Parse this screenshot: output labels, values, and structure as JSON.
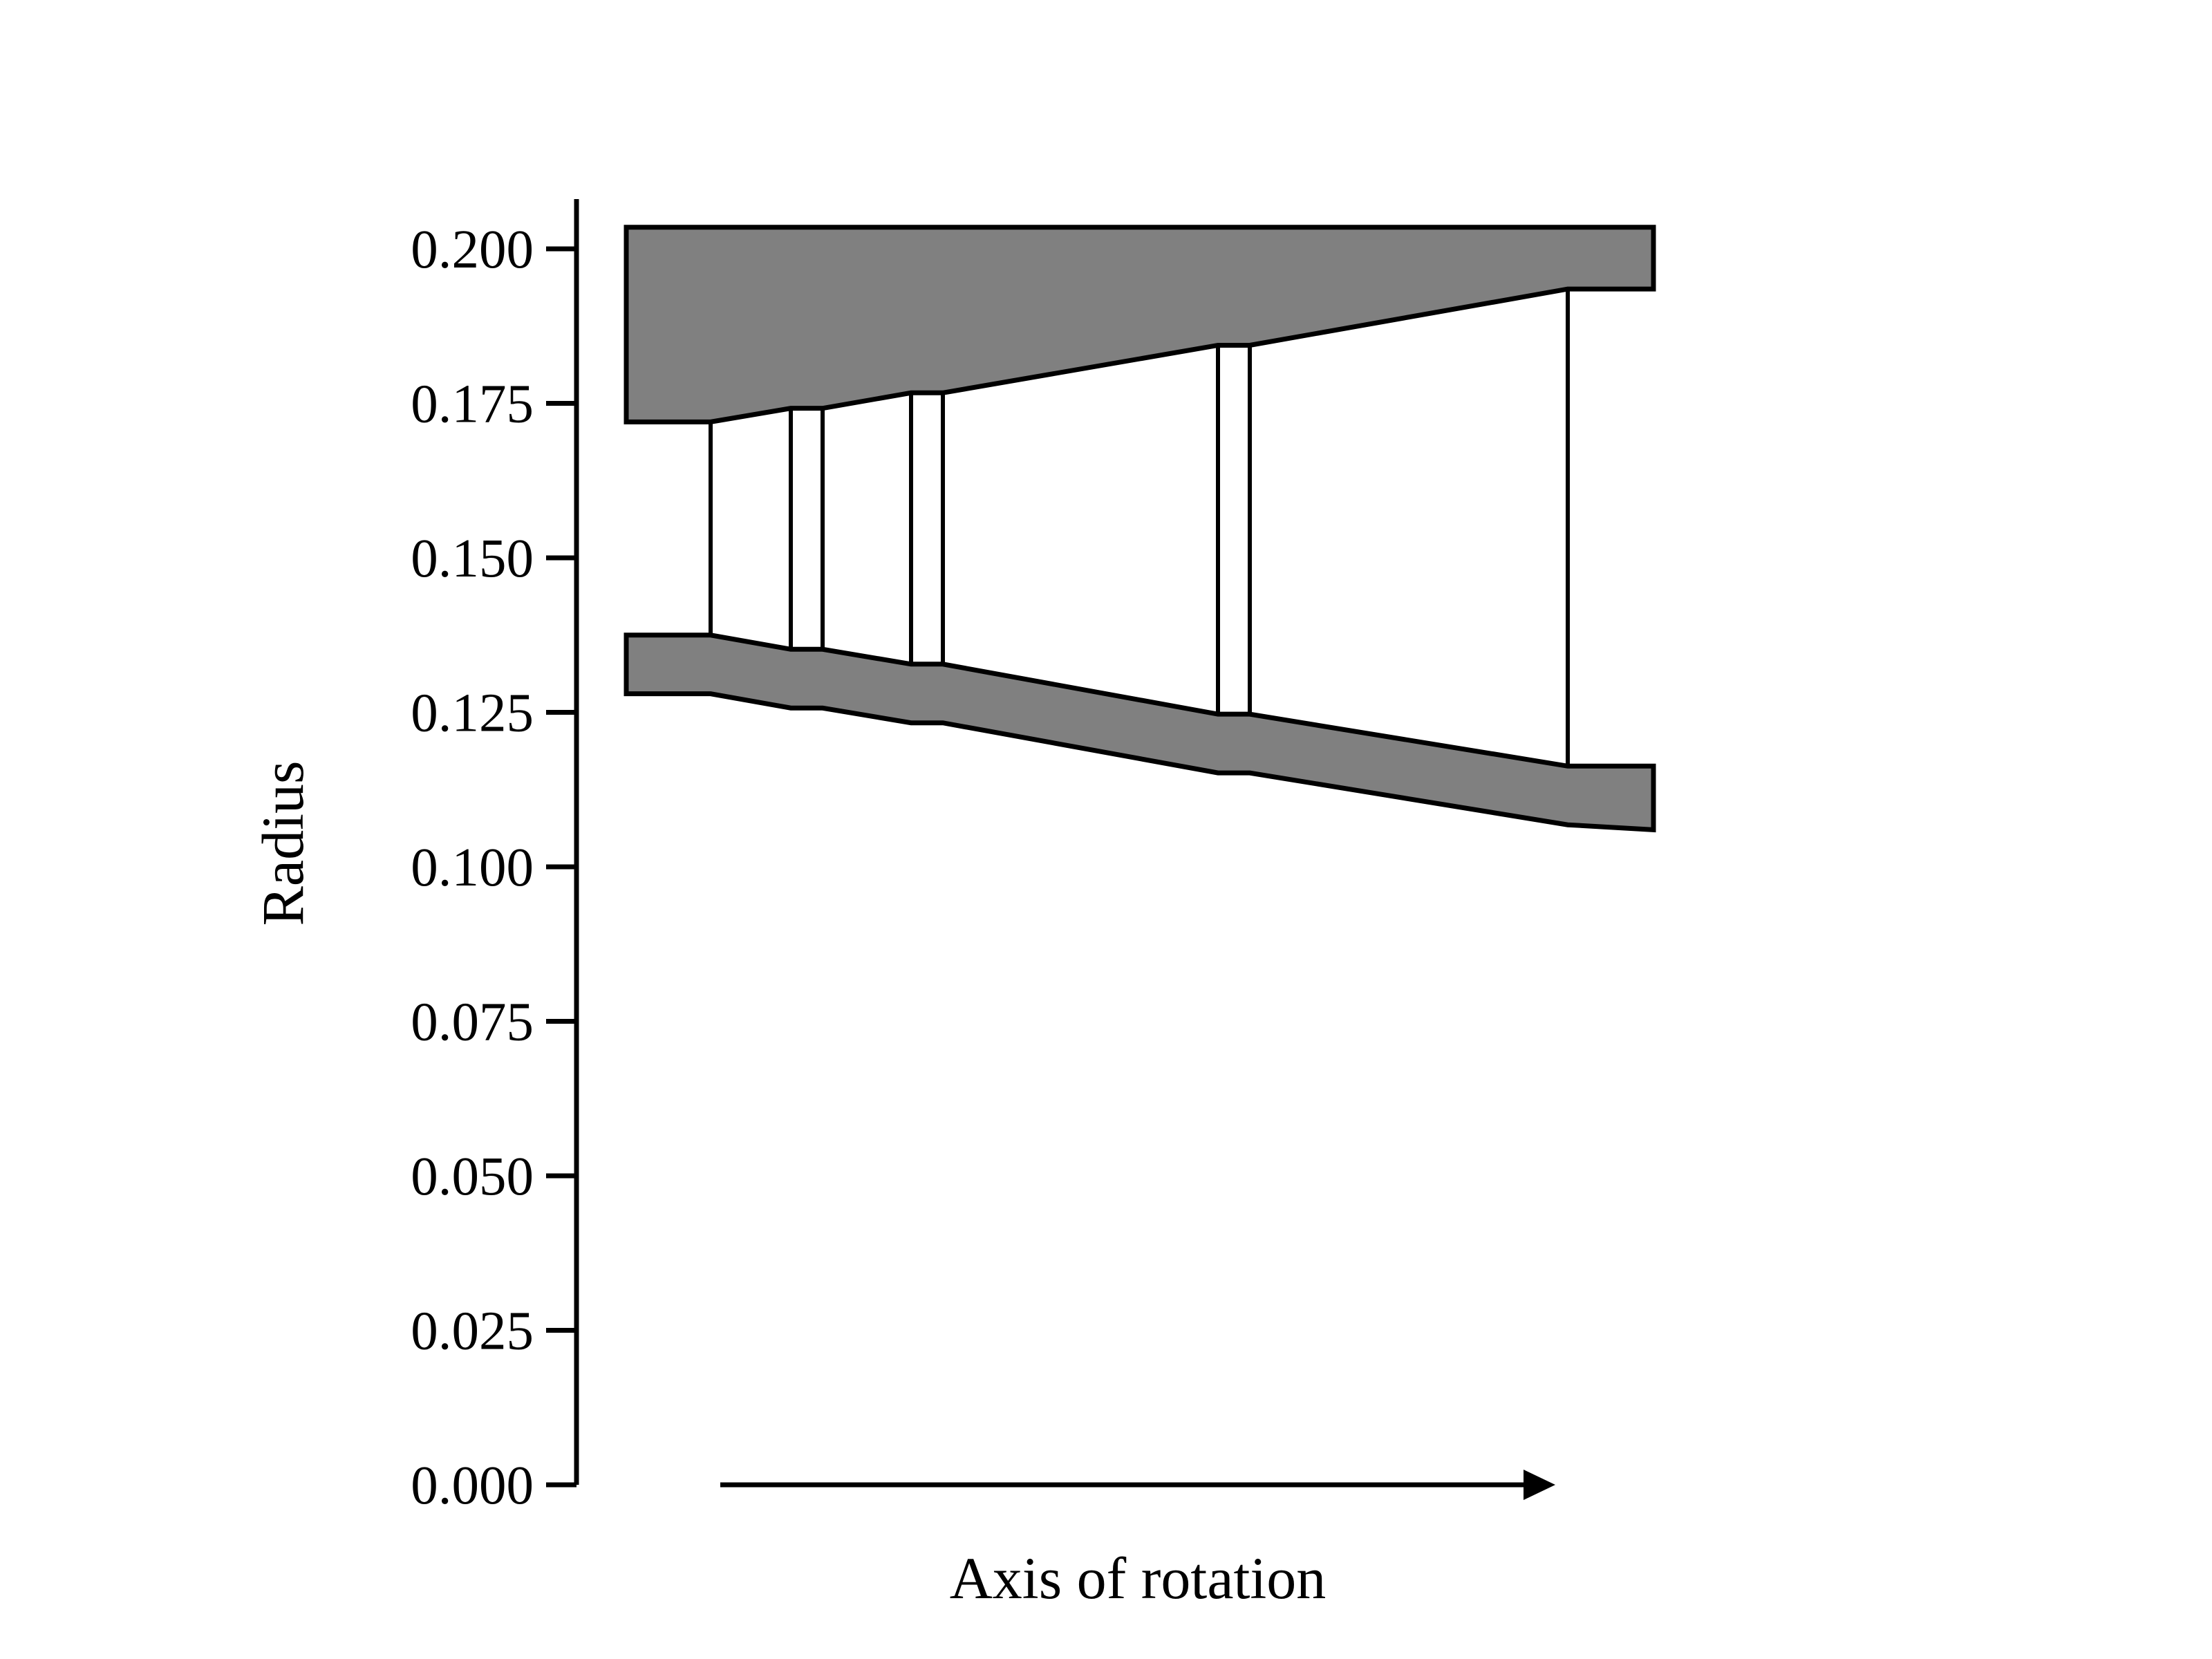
{
  "figure": {
    "y_axis_title": "Radius",
    "x_axis_title": "Axis of rotation",
    "tick_labels": [
      "0.000",
      "0.025",
      "0.050",
      "0.075",
      "0.100",
      "0.125",
      "0.150",
      "0.175",
      "0.200"
    ]
  },
  "colors": {
    "casing_fill": "#808080",
    "stroke": "#000000",
    "background": "#ffffff"
  },
  "diagram_data": {
    "y_range": [
      0.0,
      0.2
    ],
    "tip_casing_radius": 0.2035,
    "hub_inner_radius_start": 0.128,
    "hub_inner_radius_end": 0.106,
    "blade_rows": [
      {
        "tip": 0.172,
        "hub": 0.1375
      },
      {
        "tip": 0.1742,
        "hub": 0.1352
      },
      {
        "tip": 0.1767,
        "hub": 0.1328
      },
      {
        "tip": 0.1844,
        "hub": 0.1247
      },
      {
        "tip": 0.1935,
        "hub": 0.1163
      }
    ]
  }
}
